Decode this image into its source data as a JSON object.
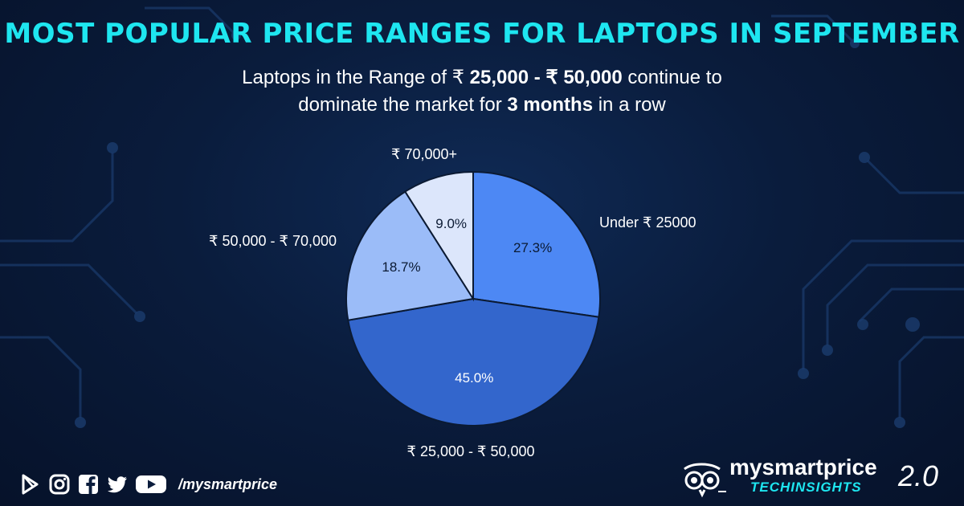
{
  "header": {
    "title": "MOST POPULAR PRICE RANGES FOR LAPTOPS IN SEPTEMBER",
    "subtitle_line1_a": "Laptops in the Range of ₹ ",
    "subtitle_line1_b": "25,000 - ₹ 50,000",
    "subtitle_line1_c": " continue to",
    "subtitle_line2_a": "dominate the market for ",
    "subtitle_line2_b": "3 months",
    "subtitle_line2_c": " in a row"
  },
  "chart_data": {
    "type": "pie",
    "title": "MOST POPULAR PRICE RANGES FOR LAPTOPS IN SEPTEMBER",
    "categories": [
      "Under ₹ 25000",
      "₹ 25,000 - ₹ 50,000",
      "₹ 50,000 - ₹ 70,000",
      "₹ 70,000+"
    ],
    "values": [
      27.3,
      45.0,
      18.7,
      9.0
    ],
    "value_labels": [
      "27.3%",
      "45.0%",
      "18.7%",
      "9.0%"
    ],
    "colors": [
      "#4d88f4",
      "#3366cc",
      "#9bbcf8",
      "#dce6fb"
    ],
    "label_colors": [
      "#0b1a33",
      "#ffffff",
      "#0b1a33",
      "#0b1a33"
    ],
    "start": "12 o'clock",
    "direction": "clockwise",
    "legend": "none"
  },
  "footer": {
    "handle": "/mysmartprice",
    "social_icons": [
      "play-store-icon",
      "instagram-icon",
      "facebook-icon",
      "twitter-icon",
      "youtube-icon"
    ],
    "brand_name": "mysmartprice",
    "brand_sub": "TECHINSIGHTS",
    "brand_version": "2.0"
  },
  "colors": {
    "title": "#1ee6f0",
    "background": "#0a1c3c",
    "circuit": "#1a3a6a"
  }
}
